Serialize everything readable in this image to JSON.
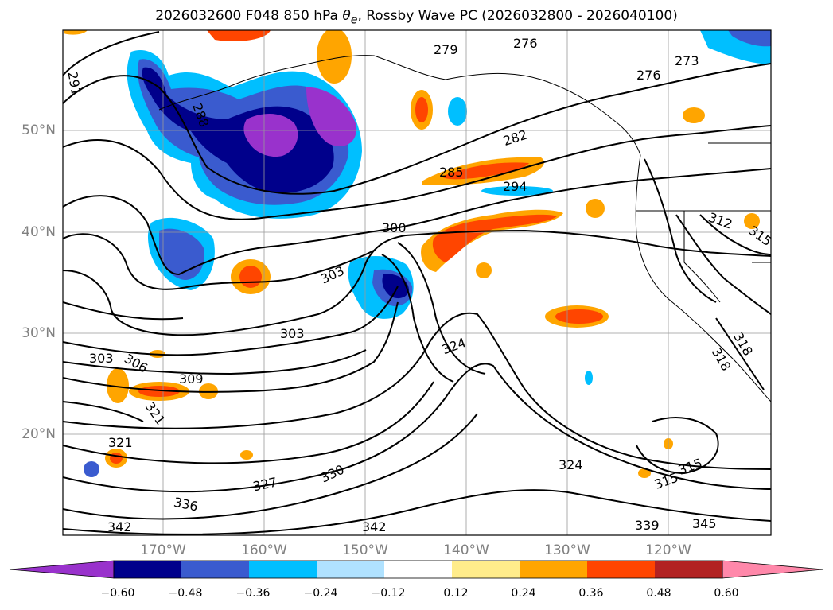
{
  "title": {
    "prefix": "2026032600 F048 850 hPa ",
    "symbol": "θ",
    "subscript": "e",
    "suffix": ", Rossby Wave PC (2026032800 - 2026040100)"
  },
  "lat_labels": [
    "50°N",
    "40°N",
    "30°N",
    "20°N"
  ],
  "lon_labels": [
    "170°W",
    "160°W",
    "150°W",
    "140°W",
    "130°W",
    "120°W"
  ],
  "colorbar": {
    "ticks": [
      "−0.60",
      "−0.48",
      "−0.36",
      "−0.24",
      "−0.12",
      "0.12",
      "0.24",
      "0.36",
      "0.48",
      "0.60"
    ],
    "colors": [
      "#9932cc",
      "#00008b",
      "#3a5bcf",
      "#00bfff",
      "#b0e2ff",
      "#ffffff",
      "#ffec8b",
      "#ffa500",
      "#ff4500",
      "#b22222",
      "#ff88aa"
    ]
  },
  "contour_labels": [
    {
      "text": "291"
    },
    {
      "text": "288"
    },
    {
      "text": "279"
    },
    {
      "text": "276"
    },
    {
      "text": "273"
    },
    {
      "text": "276"
    },
    {
      "text": "282"
    },
    {
      "text": "285"
    },
    {
      "text": "294"
    },
    {
      "text": "300"
    },
    {
      "text": "303"
    },
    {
      "text": "303"
    },
    {
      "text": "303"
    },
    {
      "text": "306"
    },
    {
      "text": "309"
    },
    {
      "text": "321"
    },
    {
      "text": "321"
    },
    {
      "text": "324"
    },
    {
      "text": "324"
    },
    {
      "text": "327"
    },
    {
      "text": "330"
    },
    {
      "text": "336"
    },
    {
      "text": "342"
    },
    {
      "text": "342"
    },
    {
      "text": "339"
    },
    {
      "text": "345"
    },
    {
      "text": "315"
    },
    {
      "text": "315"
    },
    {
      "text": "312"
    },
    {
      "text": "318"
    },
    {
      "text": "318"
    },
    {
      "text": "315"
    }
  ]
}
